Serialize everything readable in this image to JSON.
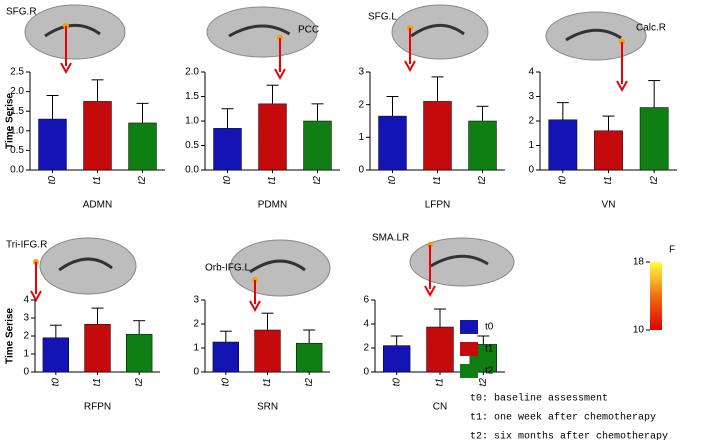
{
  "chart_data": [
    {
      "type": "bar",
      "annotation": "SFG.R",
      "xlabel": "ADMN",
      "ylabel": "Time Serise",
      "categories": [
        "t0",
        "t1",
        "t2"
      ],
      "values": [
        1.3,
        1.75,
        1.2
      ],
      "errors": [
        0.6,
        0.55,
        0.5
      ],
      "colors": [
        "#1414b4",
        "#c40a0a",
        "#0f7f14"
      ],
      "ylim": [
        0,
        2.5
      ],
      "yticks": [
        {
          "value": 0,
          "label": "0.0"
        },
        0.5,
        {
          "value": 1,
          "label": "1.0"
        },
        1.5,
        {
          "value": 2,
          "label": "2.0"
        },
        2.5
      ]
    },
    {
      "type": "bar",
      "annotation": "PCC",
      "xlabel": "PDMN",
      "categories": [
        "t0",
        "t1",
        "t2"
      ],
      "values": [
        0.85,
        1.35,
        1.0
      ],
      "errors": [
        0.4,
        0.38,
        0.35
      ],
      "colors": [
        "#1414b4",
        "#c40a0a",
        "#0f7f14"
      ],
      "ylim": [
        0,
        2
      ],
      "yticks": [
        {
          "value": 0,
          "label": "0.0"
        },
        0.5,
        {
          "value": 1,
          "label": "1.0"
        },
        1.5,
        {
          "value": 2,
          "label": "2.0"
        }
      ]
    },
    {
      "type": "bar",
      "annotation": "SFG.L",
      "xlabel": "LFPN",
      "categories": [
        "t0",
        "t1",
        "t2"
      ],
      "values": [
        1.65,
        2.1,
        1.5
      ],
      "errors": [
        0.6,
        0.75,
        0.45
      ],
      "colors": [
        "#1414b4",
        "#c40a0a",
        "#0f7f14"
      ],
      "ylim": [
        0,
        3
      ],
      "yticks": [
        0,
        1,
        2,
        3
      ]
    },
    {
      "type": "bar",
      "annotation": "Calc.R",
      "xlabel": "VN",
      "categories": [
        "t0",
        "t1",
        "t2"
      ],
      "values": [
        2.05,
        1.6,
        2.55
      ],
      "errors": [
        0.7,
        0.6,
        1.1
      ],
      "colors": [
        "#1414b4",
        "#c40a0a",
        "#0f7f14"
      ],
      "ylim": [
        0,
        4
      ],
      "yticks": [
        0,
        1,
        2,
        3,
        4
      ]
    },
    {
      "type": "bar",
      "annotation": "Tri-IFG.R",
      "xlabel": "RFPN",
      "ylabel": "Time Serise",
      "categories": [
        "t0",
        "t1",
        "t2"
      ],
      "values": [
        1.9,
        2.65,
        2.1
      ],
      "errors": [
        0.7,
        0.9,
        0.75
      ],
      "colors": [
        "#1414b4",
        "#c40a0a",
        "#0f7f14"
      ],
      "ylim": [
        0,
        4
      ],
      "yticks": [
        0,
        1,
        2,
        3,
        4
      ]
    },
    {
      "type": "bar",
      "annotation": "Orb-IFG.L",
      "xlabel": "SRN",
      "categories": [
        "t0",
        "t1",
        "t2"
      ],
      "values": [
        1.25,
        1.75,
        1.2
      ],
      "errors": [
        0.45,
        0.7,
        0.55
      ],
      "colors": [
        "#1414b4",
        "#c40a0a",
        "#0f7f14"
      ],
      "ylim": [
        0,
        3
      ],
      "yticks": [
        0,
        1,
        2,
        3
      ]
    },
    {
      "type": "bar",
      "annotation": "SMA.LR",
      "xlabel": "CN",
      "categories": [
        "t0",
        "t1",
        "t2"
      ],
      "values": [
        2.2,
        3.75,
        2.3
      ],
      "errors": [
        0.8,
        1.5,
        0.7
      ],
      "colors": [
        "#1414b4",
        "#c40a0a",
        "#0f7f14"
      ],
      "ylim": [
        0,
        6
      ],
      "yticks": [
        0,
        2,
        4,
        6
      ]
    }
  ],
  "legend": [
    {
      "name": "t0",
      "color": "#1414b4"
    },
    {
      "name": "t1",
      "color": "#c40a0a"
    },
    {
      "name": "t2",
      "color": "#0f7f14"
    }
  ],
  "notes": [
    "t0: baseline assessment",
    "t1: one week after chemotherapy",
    "t2: six months after chemotherapy"
  ],
  "colorbar": {
    "title": "F",
    "ticks": [
      10,
      18
    ]
  }
}
